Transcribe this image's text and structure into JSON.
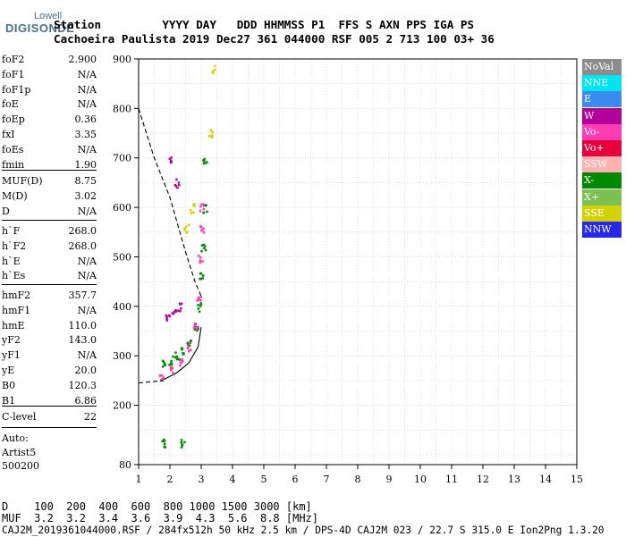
{
  "logo": {
    "line1": "Lowell",
    "line2": "DIGISONDE"
  },
  "header": {
    "row1": "Station         YYYY DAY   DDD HHMMSS P1  FFS S AXN PPS IGA PS",
    "row2": "Cachoeira Paulista 2019 Dec27 361 044000 RSF 005 2 713 100 03+ 36"
  },
  "params": {
    "group1": [
      {
        "k": "foF2",
        "v": "2.900"
      },
      {
        "k": "foF1",
        "v": "N/A"
      },
      {
        "k": "foF1p",
        "v": "N/A"
      },
      {
        "k": "foE",
        "v": "N/A"
      },
      {
        "k": "foEp",
        "v": "0.36"
      },
      {
        "k": "fxI",
        "v": "3.35"
      },
      {
        "k": "foEs",
        "v": "N/A"
      },
      {
        "k": "fmin",
        "v": "1.90"
      }
    ],
    "group2": [
      {
        "k": "MUF(D)",
        "v": "8.75"
      },
      {
        "k": "M(D)",
        "v": "3.02"
      },
      {
        "k": "D",
        "v": "N/A"
      }
    ],
    "group3": [
      {
        "k": "h`F",
        "v": "268.0"
      },
      {
        "k": "h`F2",
        "v": "268.0"
      },
      {
        "k": "h`E",
        "v": "N/A"
      },
      {
        "k": "h`Es",
        "v": "N/A"
      }
    ],
    "group4": [
      {
        "k": "hmF2",
        "v": "357.7"
      },
      {
        "k": "hmF1",
        "v": "N/A"
      },
      {
        "k": "hmE",
        "v": "110.0"
      },
      {
        "k": "yF2",
        "v": "143.0"
      },
      {
        "k": "yF1",
        "v": "N/A"
      },
      {
        "k": "yE",
        "v": "20.0"
      },
      {
        "k": "B0",
        "v": "120.3"
      },
      {
        "k": "B1",
        "v": "6.86"
      }
    ],
    "group5": [
      {
        "k": "C-level",
        "v": "22"
      }
    ],
    "auto_lines": [
      "Auto:",
      "Artist5",
      "500200"
    ]
  },
  "legend": [
    {
      "label": "NoVal",
      "color": "#8c8c8c"
    },
    {
      "label": "NNE",
      "color": "#00e5ee"
    },
    {
      "label": "E",
      "color": "#3c8cf0"
    },
    {
      "label": "W",
      "color": "#b4009a"
    },
    {
      "label": "Vo-",
      "color": "#ff3cb4"
    },
    {
      "label": "Vo+",
      "color": "#e8003a"
    },
    {
      "label": "SSW",
      "color": "#ffb0b0"
    },
    {
      "label": "X-",
      "color": "#008a00"
    },
    {
      "label": "X+",
      "color": "#7cc050"
    },
    {
      "label": "SSE",
      "color": "#d2d200"
    },
    {
      "label": "NNW",
      "color": "#2828e8"
    }
  ],
  "chart_data": {
    "type": "scatter",
    "xlabel": "",
    "ylabel": "",
    "xlim": [
      1,
      15
    ],
    "ylim": [
      80,
      900
    ],
    "x_ticks": [
      1,
      2,
      3,
      4,
      5,
      6,
      7,
      8,
      9,
      10,
      11,
      12,
      13,
      14,
      15
    ],
    "y_ticks": [
      80,
      200,
      300,
      400,
      500,
      600,
      700,
      800,
      900
    ],
    "grid": true,
    "series": [
      {
        "name": "X-",
        "values": [
          [
            1.8,
            285
          ],
          [
            2.0,
            292
          ],
          [
            2.2,
            300
          ],
          [
            2.4,
            310
          ],
          [
            2.6,
            330
          ],
          [
            2.8,
            360
          ],
          [
            2.9,
            400
          ],
          [
            3.0,
            460
          ],
          [
            3.05,
            520
          ],
          [
            3.1,
            600
          ],
          [
            3.1,
            700
          ],
          [
            1.8,
            125
          ],
          [
            2.4,
            125
          ]
        ]
      },
      {
        "name": "Vo-",
        "values": [
          [
            1.7,
            255
          ],
          [
            2.0,
            270
          ],
          [
            2.3,
            290
          ],
          [
            2.6,
            320
          ],
          [
            2.8,
            360
          ],
          [
            2.9,
            420
          ],
          [
            2.95,
            500
          ],
          [
            3.0,
            560
          ],
          [
            3.0,
            600
          ]
        ]
      },
      {
        "name": "W",
        "values": [
          [
            1.9,
            380
          ],
          [
            2.1,
            390
          ],
          [
            2.3,
            400
          ],
          [
            2.2,
            650
          ],
          [
            2.0,
            700
          ]
        ]
      },
      {
        "name": "SSE",
        "values": [
          [
            2.5,
            560
          ],
          [
            2.7,
            600
          ],
          [
            3.3,
            750
          ],
          [
            3.4,
            880
          ]
        ]
      }
    ],
    "traces": [
      {
        "name": "dashed",
        "style": "dashed",
        "values": [
          [
            1.0,
            800
          ],
          [
            1.5,
            700
          ],
          [
            2.0,
            620
          ],
          [
            2.5,
            510
          ],
          [
            2.8,
            450
          ],
          [
            3.0,
            420
          ]
        ]
      },
      {
        "name": "dashed-base",
        "style": "dashed",
        "values": [
          [
            1.0,
            245
          ],
          [
            1.8,
            250
          ]
        ]
      },
      {
        "name": "profile",
        "style": "solid",
        "values": [
          [
            1.8,
            252
          ],
          [
            2.2,
            265
          ],
          [
            2.6,
            285
          ],
          [
            2.9,
            318
          ],
          [
            3.0,
            358
          ]
        ]
      }
    ]
  },
  "footer": {
    "row1": "D    100  200  400  600  800 1000 1500 3000 [km]",
    "row2": "MUF  3.2  3.2  3.4  3.6  3.9  4.3  5.6  8.8 [MHz]",
    "row3": "CAJ2M_2019361044000.RSF / 284fx512h 50 kHz 2.5 km / DPS-4D CAJ2M 023 / 22.7 S 315.0 E Ion2Png 1.3.20"
  }
}
